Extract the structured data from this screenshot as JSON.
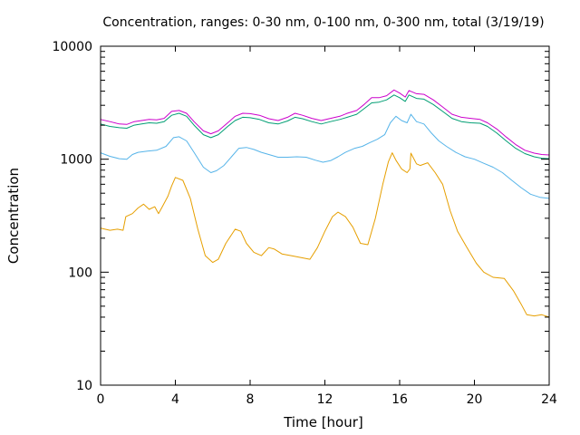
{
  "chart_data": {
    "type": "line",
    "title": "Concentration, ranges: 0-30 nm, 0-100 nm, 0-300 nm, total (3/19/19)",
    "xlabel": "Time [hour]",
    "ylabel": "Concentration",
    "xlim": [
      0,
      24
    ],
    "ylim": [
      10,
      10000
    ],
    "yscale": "log",
    "grid": false,
    "legend": "none",
    "x_ticks": [
      0,
      4,
      8,
      12,
      16,
      20,
      24
    ],
    "x_tick_labels": [
      "0",
      "4",
      "8",
      "12",
      "16",
      "20",
      "24"
    ],
    "y_ticks": [
      10,
      100,
      1000,
      10000
    ],
    "y_tick_labels": [
      "10",
      "100",
      "1000",
      "10000"
    ],
    "series": [
      {
        "color": "#e69f00",
        "points": [
          [
            0,
            245
          ],
          [
            0.5,
            235
          ],
          [
            0.9,
            240
          ],
          [
            1.2,
            235
          ],
          [
            1.35,
            310
          ],
          [
            1.7,
            330
          ],
          [
            2.0,
            370
          ],
          [
            2.3,
            400
          ],
          [
            2.6,
            360
          ],
          [
            2.9,
            380
          ],
          [
            3.1,
            330
          ],
          [
            3.3,
            380
          ],
          [
            3.6,
            470
          ],
          [
            3.8,
            580
          ],
          [
            4.0,
            690
          ],
          [
            4.4,
            650
          ],
          [
            4.8,
            450
          ],
          [
            5.2,
            240
          ],
          [
            5.6,
            140
          ],
          [
            6.0,
            122
          ],
          [
            6.3,
            130
          ],
          [
            6.7,
            180
          ],
          [
            7.2,
            240
          ],
          [
            7.5,
            230
          ],
          [
            7.8,
            180
          ],
          [
            8.2,
            150
          ],
          [
            8.6,
            140
          ],
          [
            9.0,
            165
          ],
          [
            9.3,
            160
          ],
          [
            9.7,
            145
          ],
          [
            10.2,
            140
          ],
          [
            10.7,
            135
          ],
          [
            11.2,
            130
          ],
          [
            11.6,
            165
          ],
          [
            12.0,
            230
          ],
          [
            12.4,
            310
          ],
          [
            12.7,
            340
          ],
          [
            13.1,
            310
          ],
          [
            13.5,
            250
          ],
          [
            13.9,
            180
          ],
          [
            14.3,
            175
          ],
          [
            14.7,
            300
          ],
          [
            15.1,
            600
          ],
          [
            15.4,
            950
          ],
          [
            15.6,
            1140
          ],
          [
            15.8,
            980
          ],
          [
            16.1,
            820
          ],
          [
            16.4,
            760
          ],
          [
            16.55,
            820
          ],
          [
            16.6,
            1130
          ],
          [
            16.9,
            910
          ],
          [
            17.1,
            880
          ],
          [
            17.5,
            930
          ],
          [
            17.9,
            760
          ],
          [
            18.3,
            600
          ],
          [
            18.7,
            350
          ],
          [
            19.1,
            230
          ],
          [
            19.6,
            165
          ],
          [
            20.1,
            120
          ],
          [
            20.5,
            100
          ],
          [
            21.0,
            90
          ],
          [
            21.6,
            88
          ],
          [
            22.1,
            68
          ],
          [
            22.5,
            52
          ],
          [
            22.8,
            42
          ],
          [
            23.2,
            41
          ],
          [
            23.6,
            42
          ],
          [
            24.0,
            40
          ]
        ]
      },
      {
        "color": "#56b4e9",
        "points": [
          [
            0,
            1140
          ],
          [
            0.5,
            1060
          ],
          [
            1.0,
            1010
          ],
          [
            1.4,
            1000
          ],
          [
            1.7,
            1100
          ],
          [
            2.0,
            1150
          ],
          [
            2.5,
            1180
          ],
          [
            3.0,
            1200
          ],
          [
            3.5,
            1300
          ],
          [
            3.9,
            1550
          ],
          [
            4.2,
            1580
          ],
          [
            4.6,
            1450
          ],
          [
            5.0,
            1150
          ],
          [
            5.5,
            850
          ],
          [
            5.9,
            760
          ],
          [
            6.2,
            790
          ],
          [
            6.6,
            880
          ],
          [
            7.0,
            1050
          ],
          [
            7.4,
            1250
          ],
          [
            7.8,
            1270
          ],
          [
            8.2,
            1220
          ],
          [
            8.6,
            1150
          ],
          [
            9.0,
            1100
          ],
          [
            9.5,
            1040
          ],
          [
            10.0,
            1040
          ],
          [
            10.5,
            1050
          ],
          [
            11.0,
            1040
          ],
          [
            11.5,
            980
          ],
          [
            11.9,
            940
          ],
          [
            12.3,
            970
          ],
          [
            12.7,
            1050
          ],
          [
            13.1,
            1150
          ],
          [
            13.6,
            1250
          ],
          [
            14.0,
            1300
          ],
          [
            14.4,
            1400
          ],
          [
            14.8,
            1500
          ],
          [
            15.2,
            1650
          ],
          [
            15.5,
            2100
          ],
          [
            15.8,
            2400
          ],
          [
            16.1,
            2200
          ],
          [
            16.4,
            2100
          ],
          [
            16.6,
            2500
          ],
          [
            16.9,
            2150
          ],
          [
            17.3,
            2050
          ],
          [
            17.7,
            1700
          ],
          [
            18.1,
            1450
          ],
          [
            18.5,
            1300
          ],
          [
            19.0,
            1150
          ],
          [
            19.5,
            1050
          ],
          [
            20.0,
            1000
          ],
          [
            20.5,
            920
          ],
          [
            21.0,
            850
          ],
          [
            21.5,
            760
          ],
          [
            22.0,
            650
          ],
          [
            22.5,
            560
          ],
          [
            23.0,
            490
          ],
          [
            23.5,
            460
          ],
          [
            24.0,
            450
          ]
        ]
      },
      {
        "color": "#009e73",
        "points": [
          [
            0,
            2050
          ],
          [
            0.5,
            1950
          ],
          [
            1.0,
            1900
          ],
          [
            1.4,
            1880
          ],
          [
            1.8,
            2000
          ],
          [
            2.2,
            2050
          ],
          [
            2.6,
            2100
          ],
          [
            3.0,
            2080
          ],
          [
            3.4,
            2150
          ],
          [
            3.8,
            2450
          ],
          [
            4.2,
            2550
          ],
          [
            4.6,
            2400
          ],
          [
            5.0,
            2000
          ],
          [
            5.5,
            1650
          ],
          [
            5.9,
            1550
          ],
          [
            6.3,
            1650
          ],
          [
            6.8,
            1950
          ],
          [
            7.2,
            2200
          ],
          [
            7.6,
            2350
          ],
          [
            8.0,
            2330
          ],
          [
            8.5,
            2250
          ],
          [
            9.0,
            2100
          ],
          [
            9.5,
            2050
          ],
          [
            10.0,
            2180
          ],
          [
            10.4,
            2350
          ],
          [
            10.8,
            2280
          ],
          [
            11.3,
            2150
          ],
          [
            11.8,
            2050
          ],
          [
            12.3,
            2150
          ],
          [
            12.8,
            2250
          ],
          [
            13.2,
            2350
          ],
          [
            13.7,
            2500
          ],
          [
            14.1,
            2800
          ],
          [
            14.5,
            3150
          ],
          [
            14.9,
            3200
          ],
          [
            15.3,
            3350
          ],
          [
            15.7,
            3700
          ],
          [
            16.0,
            3500
          ],
          [
            16.3,
            3250
          ],
          [
            16.5,
            3700
          ],
          [
            16.9,
            3450
          ],
          [
            17.3,
            3400
          ],
          [
            17.8,
            3050
          ],
          [
            18.3,
            2650
          ],
          [
            18.8,
            2300
          ],
          [
            19.3,
            2150
          ],
          [
            19.8,
            2100
          ],
          [
            20.3,
            2080
          ],
          [
            20.7,
            1950
          ],
          [
            21.2,
            1700
          ],
          [
            21.7,
            1450
          ],
          [
            22.2,
            1250
          ],
          [
            22.7,
            1120
          ],
          [
            23.2,
            1050
          ],
          [
            23.6,
            1020
          ],
          [
            24.0,
            1010
          ]
        ]
      },
      {
        "color": "#cc00cc",
        "points": [
          [
            0,
            2250
          ],
          [
            0.5,
            2150
          ],
          [
            1.0,
            2050
          ],
          [
            1.4,
            2030
          ],
          [
            1.8,
            2150
          ],
          [
            2.2,
            2200
          ],
          [
            2.6,
            2250
          ],
          [
            3.0,
            2230
          ],
          [
            3.4,
            2300
          ],
          [
            3.8,
            2650
          ],
          [
            4.2,
            2700
          ],
          [
            4.6,
            2550
          ],
          [
            5.0,
            2150
          ],
          [
            5.5,
            1780
          ],
          [
            5.9,
            1680
          ],
          [
            6.3,
            1780
          ],
          [
            6.8,
            2100
          ],
          [
            7.2,
            2400
          ],
          [
            7.6,
            2550
          ],
          [
            8.0,
            2530
          ],
          [
            8.5,
            2450
          ],
          [
            9.0,
            2280
          ],
          [
            9.5,
            2200
          ],
          [
            10.0,
            2350
          ],
          [
            10.4,
            2550
          ],
          [
            10.8,
            2450
          ],
          [
            11.3,
            2300
          ],
          [
            11.8,
            2200
          ],
          [
            12.3,
            2300
          ],
          [
            12.8,
            2400
          ],
          [
            13.2,
            2550
          ],
          [
            13.7,
            2700
          ],
          [
            14.1,
            3050
          ],
          [
            14.5,
            3500
          ],
          [
            14.9,
            3500
          ],
          [
            15.3,
            3650
          ],
          [
            15.7,
            4100
          ],
          [
            16.0,
            3850
          ],
          [
            16.3,
            3550
          ],
          [
            16.5,
            4050
          ],
          [
            16.9,
            3800
          ],
          [
            17.3,
            3750
          ],
          [
            17.8,
            3350
          ],
          [
            18.3,
            2900
          ],
          [
            18.8,
            2500
          ],
          [
            19.3,
            2350
          ],
          [
            19.8,
            2300
          ],
          [
            20.3,
            2250
          ],
          [
            20.7,
            2100
          ],
          [
            21.2,
            1850
          ],
          [
            21.7,
            1570
          ],
          [
            22.2,
            1350
          ],
          [
            22.7,
            1200
          ],
          [
            23.2,
            1130
          ],
          [
            23.6,
            1100
          ],
          [
            24.0,
            1090
          ]
        ]
      }
    ]
  }
}
